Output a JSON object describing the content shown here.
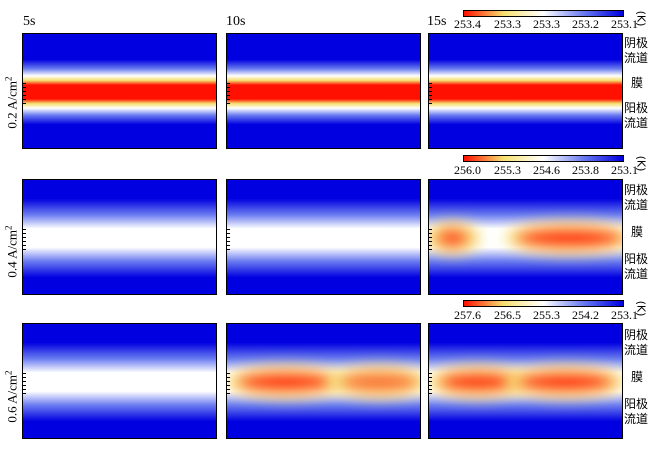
{
  "time_labels": [
    "5s",
    "10s",
    "15s"
  ],
  "rows": [
    {
      "label": "0.2 A/cm",
      "sup": "2"
    },
    {
      "label": "0.4 A/cm",
      "sup": "2"
    },
    {
      "label": "0.6 A/cm",
      "sup": "2"
    }
  ],
  "side_labels": {
    "anode_top": "阴极流道",
    "membrane": "膜",
    "anode_bottom": "阳极流道"
  },
  "side_top": [
    "阴极",
    "流道"
  ],
  "side_bottom": [
    "阳极",
    "流道"
  ],
  "unit": "(K)",
  "colorbars": [
    {
      "ticks": [
        "253.4",
        "253.3",
        "253.3",
        "253.2",
        "253.1"
      ]
    },
    {
      "ticks": [
        "256.0",
        "255.3",
        "254.6",
        "253.8",
        "253.1"
      ]
    },
    {
      "ticks": [
        "257.6",
        "256.5",
        "255.3",
        "254.2",
        "253.1"
      ]
    }
  ],
  "colormap": [
    "#0000e0",
    "#6a7cf0",
    "#ffffff",
    "#f5e070",
    "#ff1000"
  ]
}
